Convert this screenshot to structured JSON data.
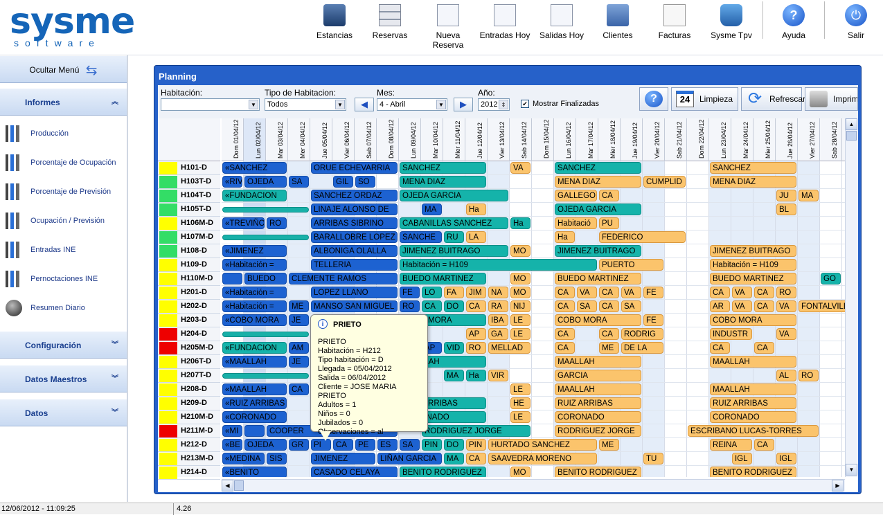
{
  "app": {
    "logo_main": "sysme",
    "logo_sub": "software"
  },
  "toolbar": [
    {
      "name": "stancias",
      "label": "Estancias",
      "icon": "people-icon"
    },
    {
      "name": "reservas",
      "label": "Reservas",
      "icon": "cabinet-icon"
    },
    {
      "name": "nueva",
      "label": "Nueva Reserva",
      "icon": "new-doc-icon"
    },
    {
      "name": "entradas",
      "label": "Entradas Hoy",
      "icon": "doc-in-icon"
    },
    {
      "name": "salidas",
      "label": "Salidas Hoy",
      "icon": "doc-out-icon"
    },
    {
      "name": "clientes",
      "label": "Clientes",
      "icon": "address-book-icon"
    },
    {
      "name": "facturas",
      "label": "Facturas",
      "icon": "papers-icon"
    },
    {
      "name": "tpv",
      "label": "Sysme Tpv",
      "icon": "cart-icon"
    },
    {
      "name": "ayuda",
      "label": "Ayuda",
      "icon": "help-icon"
    },
    {
      "name": "salir",
      "label": "Salir",
      "icon": "power-icon"
    }
  ],
  "sidebar": {
    "hide_menu": "Ocultar Menú",
    "informes": "Informes",
    "items": [
      "Producción",
      "Porcentaje de Ocupación",
      "Porcentaje de Previsión",
      "Ocupación / Previsión",
      "Entradas INE",
      "Pernoctaciones INE",
      "Resumen Diario"
    ],
    "configuracion": "Configuración",
    "datos_maestros": "Datos Maestros",
    "datos": "Datos"
  },
  "planning": {
    "title": "Planning",
    "habitacion_label": "Habitación:",
    "habitacion_value": "",
    "tipo_label": "Tipo de Habitacion:",
    "tipo_value": "Todos",
    "mes_label": "Mes:",
    "mes_value": "4 - Abril",
    "anio_label": "Año:",
    "anio_value": "2012",
    "mostrar_label": "Mostrar Finalizadas",
    "mostrar_checked": "✔",
    "limpieza_label": "Limpieza",
    "limpieza_day": "24",
    "refrescar_label": "Refrescar",
    "imprimir_label": "Imprimir",
    "days": [
      "Dom 01/04/12",
      "Lun 02/04/12",
      "Mar 03/04/12",
      "Mer 04/04/12",
      "Jue 05/04/12",
      "Vier 06/04/12",
      "Sab 07/04/12",
      "Dom 08/04/12",
      "Lun 09/04/12",
      "Mar 10/04/12",
      "Mier 11/04/12",
      "Jue 12/04/12",
      "Vier 13/04/12",
      "Sab 14/04/12",
      "Dom 15/04/12",
      "Lun 16/04/12",
      "Mar 17/04/12",
      "Mier 18/04/12",
      "Jue 19/04/12",
      "Vier 20/04/12",
      "Sab 21/04/12",
      "Dom 22/04/12",
      "Lun 23/04/12",
      "Mar 24/04/12",
      "Mier 25/04/12",
      "Jue 26/04/12",
      "Vier 27/04/12",
      "Sab 28/04/12"
    ],
    "rooms": [
      {
        "name": "H101-D",
        "color": "#ffff00"
      },
      {
        "name": "H103T-D",
        "color": "#33dd66"
      },
      {
        "name": "H104T-D",
        "color": "#33dd66"
      },
      {
        "name": "H105T-D",
        "color": "#33dd66"
      },
      {
        "name": "H106M-D",
        "color": "#ffff00"
      },
      {
        "name": "H107M-D",
        "color": "#33dd66"
      },
      {
        "name": "H108-D",
        "color": "#33dd66"
      },
      {
        "name": "H109-D",
        "color": "#ffff00"
      },
      {
        "name": "H110M-D",
        "color": "#ffff00"
      },
      {
        "name": "H201-D",
        "color": "#ffff00"
      },
      {
        "name": "H202-D",
        "color": "#ffff00"
      },
      {
        "name": "H203-D",
        "color": "#ffff00"
      },
      {
        "name": "H204-D",
        "color": "#ee0000"
      },
      {
        "name": "H205M-D",
        "color": "#ee0000"
      },
      {
        "name": "H206T-D",
        "color": "#ffff00"
      },
      {
        "name": "H207T-D",
        "color": "#ffff00"
      },
      {
        "name": "H208-D",
        "color": "#ffff00"
      },
      {
        "name": "H209-D",
        "color": "#ffff00"
      },
      {
        "name": "H210M-D",
        "color": "#ffff00"
      },
      {
        "name": "H211M-D",
        "color": "#ee0000"
      },
      {
        "name": "H212-D",
        "color": "#ffff00"
      },
      {
        "name": "H213M-D",
        "color": "#ffff00"
      },
      {
        "name": "H214-D",
        "color": "#ffff00"
      }
    ],
    "reservations": [
      [
        "«SANCHEZ",
        0,
        0,
        3,
        "b"
      ],
      [
        "ORUE ECHEVARRIA",
        0,
        4,
        4,
        "b"
      ],
      [
        "SANCHEZ",
        0,
        8,
        4,
        "t"
      ],
      [
        "VA",
        0,
        13,
        1,
        "o"
      ],
      [
        "SANCHEZ",
        0,
        15,
        4,
        "t"
      ],
      [
        "SANCHEZ",
        0,
        22,
        4,
        "o"
      ],
      [
        "«RIV",
        1,
        0,
        1,
        "b"
      ],
      [
        "OJEDA",
        1,
        1,
        2,
        "b"
      ],
      [
        "SA",
        1,
        3,
        1,
        "b"
      ],
      [
        "GIL",
        1,
        5,
        1,
        "b"
      ],
      [
        "SO",
        1,
        6,
        1,
        "b"
      ],
      [
        "MENA DIAZ",
        1,
        8,
        4,
        "t"
      ],
      [
        "MENA DIAZ",
        1,
        15,
        4,
        "o"
      ],
      [
        "CUMPLID",
        1,
        19,
        2,
        "o"
      ],
      [
        "MENA DIAZ",
        1,
        22,
        4,
        "o"
      ],
      [
        "«FUNDACION",
        2,
        0,
        3,
        "t"
      ],
      [
        "SANCHEZ ORDAZ",
        2,
        4,
        4,
        "b"
      ],
      [
        "OJEDA GARCIA",
        2,
        8,
        5,
        "t"
      ],
      [
        "GALLEGO",
        2,
        15,
        2,
        "o"
      ],
      [
        "CA",
        2,
        17,
        1,
        "o"
      ],
      [
        "JU",
        2,
        25,
        1,
        "o"
      ],
      [
        "MA",
        2,
        26,
        1,
        "o"
      ],
      [
        "",
        3,
        0,
        4,
        "thin"
      ],
      [
        "LINAJE ALONSO DE",
        3,
        4,
        4,
        "b"
      ],
      [
        "MA",
        3,
        9,
        1,
        "b"
      ],
      [
        "Ha",
        3,
        11,
        1,
        "o"
      ],
      [
        "OJEDA GARCIA",
        3,
        15,
        4,
        "t"
      ],
      [
        "BL",
        3,
        25,
        1,
        "o"
      ],
      [
        "«TREVIÑO",
        4,
        0,
        2,
        "b"
      ],
      [
        "RO",
        4,
        2,
        1,
        "b"
      ],
      [
        "ARRIBAS SIBRINO",
        4,
        4,
        4,
        "b"
      ],
      [
        "CABANILLAS SANCHEZ",
        4,
        8,
        5,
        "t"
      ],
      [
        "Ha",
        4,
        13,
        1,
        "t"
      ],
      [
        "Habitació",
        4,
        15,
        2,
        "o"
      ],
      [
        "PU",
        4,
        17,
        1,
        "o"
      ],
      [
        "",
        5,
        0,
        4,
        "thin"
      ],
      [
        "BARALLOBRE LOPEZ",
        5,
        4,
        4,
        "b"
      ],
      [
        "SANCHE",
        5,
        8,
        2,
        "b"
      ],
      [
        "RU",
        5,
        10,
        1,
        "t"
      ],
      [
        "LA",
        5,
        11,
        1,
        "o"
      ],
      [
        "Ha",
        5,
        15,
        1,
        "o"
      ],
      [
        "FEDERICO",
        5,
        17,
        4,
        "o"
      ],
      [
        "«JIMENEZ",
        6,
        0,
        3,
        "b"
      ],
      [
        "ALBONIGA OLALLA",
        6,
        4,
        4,
        "b"
      ],
      [
        "JIMENEZ BUITRAGO",
        6,
        8,
        5,
        "t"
      ],
      [
        "MO",
        6,
        13,
        1,
        "o"
      ],
      [
        "JIMENEZ BUITRAGO",
        6,
        15,
        4,
        "t"
      ],
      [
        "JIMENEZ BUITRAGO",
        6,
        22,
        4,
        "o"
      ],
      [
        "«Habitación =",
        7,
        0,
        3,
        "b"
      ],
      [
        "TELLERIA",
        7,
        4,
        4,
        "b"
      ],
      [
        "Habitación = H109",
        7,
        8,
        9,
        "t"
      ],
      [
        "PUERTO",
        7,
        17,
        3,
        "o"
      ],
      [
        "Habitación = H109",
        7,
        22,
        4,
        "o"
      ],
      [
        "",
        8,
        0,
        1,
        "b"
      ],
      [
        "BUEDO",
        8,
        1,
        2,
        "b"
      ],
      [
        "CLEMENTE RAMOS",
        8,
        3,
        5,
        "b"
      ],
      [
        "BUEDO MARTINEZ",
        8,
        8,
        4,
        "t"
      ],
      [
        "MO",
        8,
        13,
        1,
        "o"
      ],
      [
        "BUEDO MARTINEZ",
        8,
        15,
        4,
        "o"
      ],
      [
        "BUEDO MARTINEZ",
        8,
        22,
        4,
        "o"
      ],
      [
        "GO",
        8,
        27,
        1,
        "t"
      ],
      [
        "«Habitación =",
        9,
        0,
        3,
        "b"
      ],
      [
        "LOPEZ LLANO",
        9,
        4,
        4,
        "b"
      ],
      [
        "FE",
        9,
        8,
        1,
        "b"
      ],
      [
        "LO",
        9,
        9,
        1,
        "t"
      ],
      [
        "FA",
        9,
        10,
        1,
        "o"
      ],
      [
        "JIM",
        9,
        11,
        1,
        "o"
      ],
      [
        "NA",
        9,
        12,
        1,
        "o"
      ],
      [
        "MO",
        9,
        13,
        1,
        "o"
      ],
      [
        "CA",
        9,
        15,
        1,
        "o"
      ],
      [
        "VA",
        9,
        16,
        1,
        "o"
      ],
      [
        "CA",
        9,
        17,
        1,
        "o"
      ],
      [
        "VA",
        9,
        18,
        1,
        "o"
      ],
      [
        "FE",
        9,
        19,
        1,
        "o"
      ],
      [
        "CA",
        9,
        22,
        1,
        "o"
      ],
      [
        "VA",
        9,
        23,
        1,
        "o"
      ],
      [
        "CA",
        9,
        24,
        1,
        "o"
      ],
      [
        "RO",
        9,
        25,
        1,
        "o"
      ],
      [
        "«Habitación =",
        10,
        0,
        3,
        "b"
      ],
      [
        "ME",
        10,
        3,
        1,
        "b"
      ],
      [
        "MANSO SAN MIGUEL",
        10,
        4,
        4,
        "b"
      ],
      [
        "RO",
        10,
        8,
        1,
        "b"
      ],
      [
        "CA",
        10,
        9,
        1,
        "t"
      ],
      [
        "DO",
        10,
        10,
        1,
        "t"
      ],
      [
        "CA",
        10,
        11,
        1,
        "o"
      ],
      [
        "RA",
        10,
        12,
        1,
        "o"
      ],
      [
        "NIJ",
        10,
        13,
        1,
        "o"
      ],
      [
        "CA",
        10,
        15,
        1,
        "o"
      ],
      [
        "SA",
        10,
        16,
        1,
        "o"
      ],
      [
        "CA",
        10,
        17,
        1,
        "o"
      ],
      [
        "SA",
        10,
        18,
        1,
        "o"
      ],
      [
        "AR",
        10,
        22,
        1,
        "o"
      ],
      [
        "VA",
        10,
        23,
        1,
        "o"
      ],
      [
        "CA",
        10,
        24,
        1,
        "o"
      ],
      [
        "VA",
        10,
        25,
        1,
        "o"
      ],
      [
        "FONTALVILLA",
        10,
        26,
        3,
        "o"
      ],
      [
        "«COBO MORA",
        11,
        0,
        3,
        "b"
      ],
      [
        "JE",
        11,
        3,
        1,
        "b"
      ],
      [
        "COBO MORA",
        11,
        8,
        4,
        "t"
      ],
      [
        "IBA",
        11,
        12,
        1,
        "o"
      ],
      [
        "LE",
        11,
        13,
        1,
        "o"
      ],
      [
        "COBO MORA",
        11,
        15,
        4,
        "o"
      ],
      [
        "FE",
        11,
        19,
        1,
        "o"
      ],
      [
        "COBO MORA",
        11,
        22,
        4,
        "o"
      ],
      [
        "",
        12,
        0,
        4,
        "thin"
      ],
      [
        "AP",
        12,
        11,
        1,
        "o"
      ],
      [
        "GA",
        12,
        12,
        1,
        "o"
      ],
      [
        "LE",
        12,
        13,
        1,
        "o"
      ],
      [
        "CA",
        12,
        15,
        1,
        "o"
      ],
      [
        "CA",
        12,
        17,
        1,
        "o"
      ],
      [
        "RODRIG",
        12,
        18,
        2,
        "o"
      ],
      [
        "INDUSTR",
        12,
        22,
        2,
        "o"
      ],
      [
        "VA",
        12,
        25,
        1,
        "o"
      ],
      [
        "«FUNDACION",
        13,
        0,
        3,
        "t"
      ],
      [
        "AM",
        13,
        3,
        1,
        "b"
      ],
      [
        "AP",
        13,
        9,
        1,
        "b"
      ],
      [
        "VID",
        13,
        10,
        1,
        "t"
      ],
      [
        "RO",
        13,
        11,
        1,
        "o"
      ],
      [
        "MELLAD",
        13,
        12,
        2,
        "o"
      ],
      [
        "CA",
        13,
        15,
        1,
        "o"
      ],
      [
        "ME",
        13,
        17,
        1,
        "o"
      ],
      [
        "DE LA",
        13,
        18,
        2,
        "o"
      ],
      [
        "CA",
        13,
        22,
        1,
        "o"
      ],
      [
        "CA",
        13,
        24,
        1,
        "o"
      ],
      [
        "«MAALLAH",
        14,
        0,
        3,
        "b"
      ],
      [
        "JE",
        14,
        3,
        1,
        "b"
      ],
      [
        "MAALLAH",
        14,
        8,
        4,
        "t"
      ],
      [
        "MAALLAH",
        14,
        15,
        4,
        "o"
      ],
      [
        "MAALLAH",
        14,
        22,
        4,
        "o"
      ],
      [
        "",
        15,
        0,
        4,
        "thin"
      ],
      [
        "MA",
        15,
        10,
        1,
        "t"
      ],
      [
        "Ha",
        15,
        11,
        1,
        "t"
      ],
      [
        "VIR",
        15,
        12,
        1,
        "o"
      ],
      [
        "GARCIA",
        15,
        15,
        4,
        "o"
      ],
      [
        "AL",
        15,
        25,
        1,
        "o"
      ],
      [
        "RO",
        15,
        26,
        1,
        "o"
      ],
      [
        "«MAALLAH",
        16,
        0,
        3,
        "b"
      ],
      [
        "CA",
        16,
        3,
        1,
        "b"
      ],
      [
        "LE",
        16,
        13,
        1,
        "o"
      ],
      [
        "MAALLAH",
        16,
        15,
        4,
        "o"
      ],
      [
        "MAALLAH",
        16,
        22,
        4,
        "o"
      ],
      [
        "«RUIZ ARRIBAS",
        17,
        0,
        3,
        "b"
      ],
      [
        "RUIZ ARRIBAS",
        17,
        8,
        4,
        "t"
      ],
      [
        "HE",
        17,
        13,
        1,
        "o"
      ],
      [
        "RUIZ ARRIBAS",
        17,
        15,
        4,
        "o"
      ],
      [
        "RUIZ ARRIBAS",
        17,
        22,
        4,
        "o"
      ],
      [
        "«CORONADO",
        18,
        0,
        3,
        "b"
      ],
      [
        "CORONADO",
        18,
        8,
        4,
        "t"
      ],
      [
        "LE",
        18,
        13,
        1,
        "o"
      ],
      [
        "CORONADO",
        18,
        15,
        4,
        "o"
      ],
      [
        "CORONADO",
        18,
        22,
        4,
        "o"
      ],
      [
        "«MI",
        19,
        0,
        1,
        "b"
      ],
      [
        "",
        19,
        1,
        1,
        "b"
      ],
      [
        "COOPER",
        19,
        2,
        6,
        "b"
      ],
      [
        "RODRIGUEZ JORGE",
        19,
        9,
        5,
        "t"
      ],
      [
        "RODRIGUEZ JORGE",
        19,
        15,
        4,
        "o"
      ],
      [
        "ESCRIBANO LUCAS-TORRES",
        19,
        21,
        6,
        "o"
      ],
      [
        "«BE",
        20,
        0,
        1,
        "b"
      ],
      [
        "OJEDA",
        20,
        1,
        2,
        "b"
      ],
      [
        "GR",
        20,
        3,
        1,
        "b"
      ],
      [
        "PI",
        20,
        4,
        1,
        "b"
      ],
      [
        "CA",
        20,
        5,
        1,
        "b"
      ],
      [
        "PE",
        20,
        6,
        1,
        "b"
      ],
      [
        "ES",
        20,
        7,
        1,
        "b"
      ],
      [
        "SA",
        20,
        8,
        1,
        "b"
      ],
      [
        "PIN",
        20,
        9,
        1,
        "t"
      ],
      [
        "DO",
        20,
        10,
        1,
        "t"
      ],
      [
        "PIN",
        20,
        11,
        1,
        "o"
      ],
      [
        "HURTADO SANCHEZ",
        20,
        12,
        5,
        "o"
      ],
      [
        "ME",
        20,
        17,
        1,
        "o"
      ],
      [
        "REINA",
        20,
        22,
        2,
        "o"
      ],
      [
        "CA",
        20,
        24,
        1,
        "o"
      ],
      [
        "«MEDINA",
        21,
        0,
        2,
        "b"
      ],
      [
        "SIS",
        21,
        2,
        1,
        "b"
      ],
      [
        "JIMENEZ",
        21,
        4,
        3,
        "b"
      ],
      [
        "LIÑAN GARCIA",
        21,
        7,
        3,
        "b"
      ],
      [
        "MA",
        21,
        10,
        1,
        "t"
      ],
      [
        "CA",
        21,
        11,
        1,
        "o"
      ],
      [
        "SAAVEDRA MORENO",
        21,
        12,
        5,
        "o"
      ],
      [
        "TU",
        21,
        19,
        1,
        "o"
      ],
      [
        "IGL",
        21,
        23,
        1,
        "o"
      ],
      [
        "IGL",
        21,
        25,
        1,
        "o"
      ],
      [
        "«BENITO",
        22,
        0,
        3,
        "b"
      ],
      [
        "CASADO CELAYA",
        22,
        4,
        4,
        "b"
      ],
      [
        "BENITO RODRIGUEZ",
        22,
        8,
        4,
        "t"
      ],
      [
        "MO",
        22,
        13,
        1,
        "o"
      ],
      [
        "BENITO RODRIGUEZ",
        22,
        15,
        4,
        "o"
      ],
      [
        "BENITO RODRIGUEZ",
        22,
        22,
        4,
        "o"
      ]
    ]
  },
  "tooltip": {
    "title": "PRIETO",
    "lines": [
      "PRIETO",
      "Habitación = H212",
      "Tipo habitación = D",
      "Llegada = 05/04/2012",
      "Salida = 06/04/2012",
      "Cliente = JOSE MARIA PRIETO",
      "Adultos = 1",
      "Niños = 0",
      "Jubilados = 0",
      "Observaciones = al"
    ]
  },
  "status": {
    "datetime": "12/06/2012 - 11:09:25",
    "version": "4.26"
  }
}
